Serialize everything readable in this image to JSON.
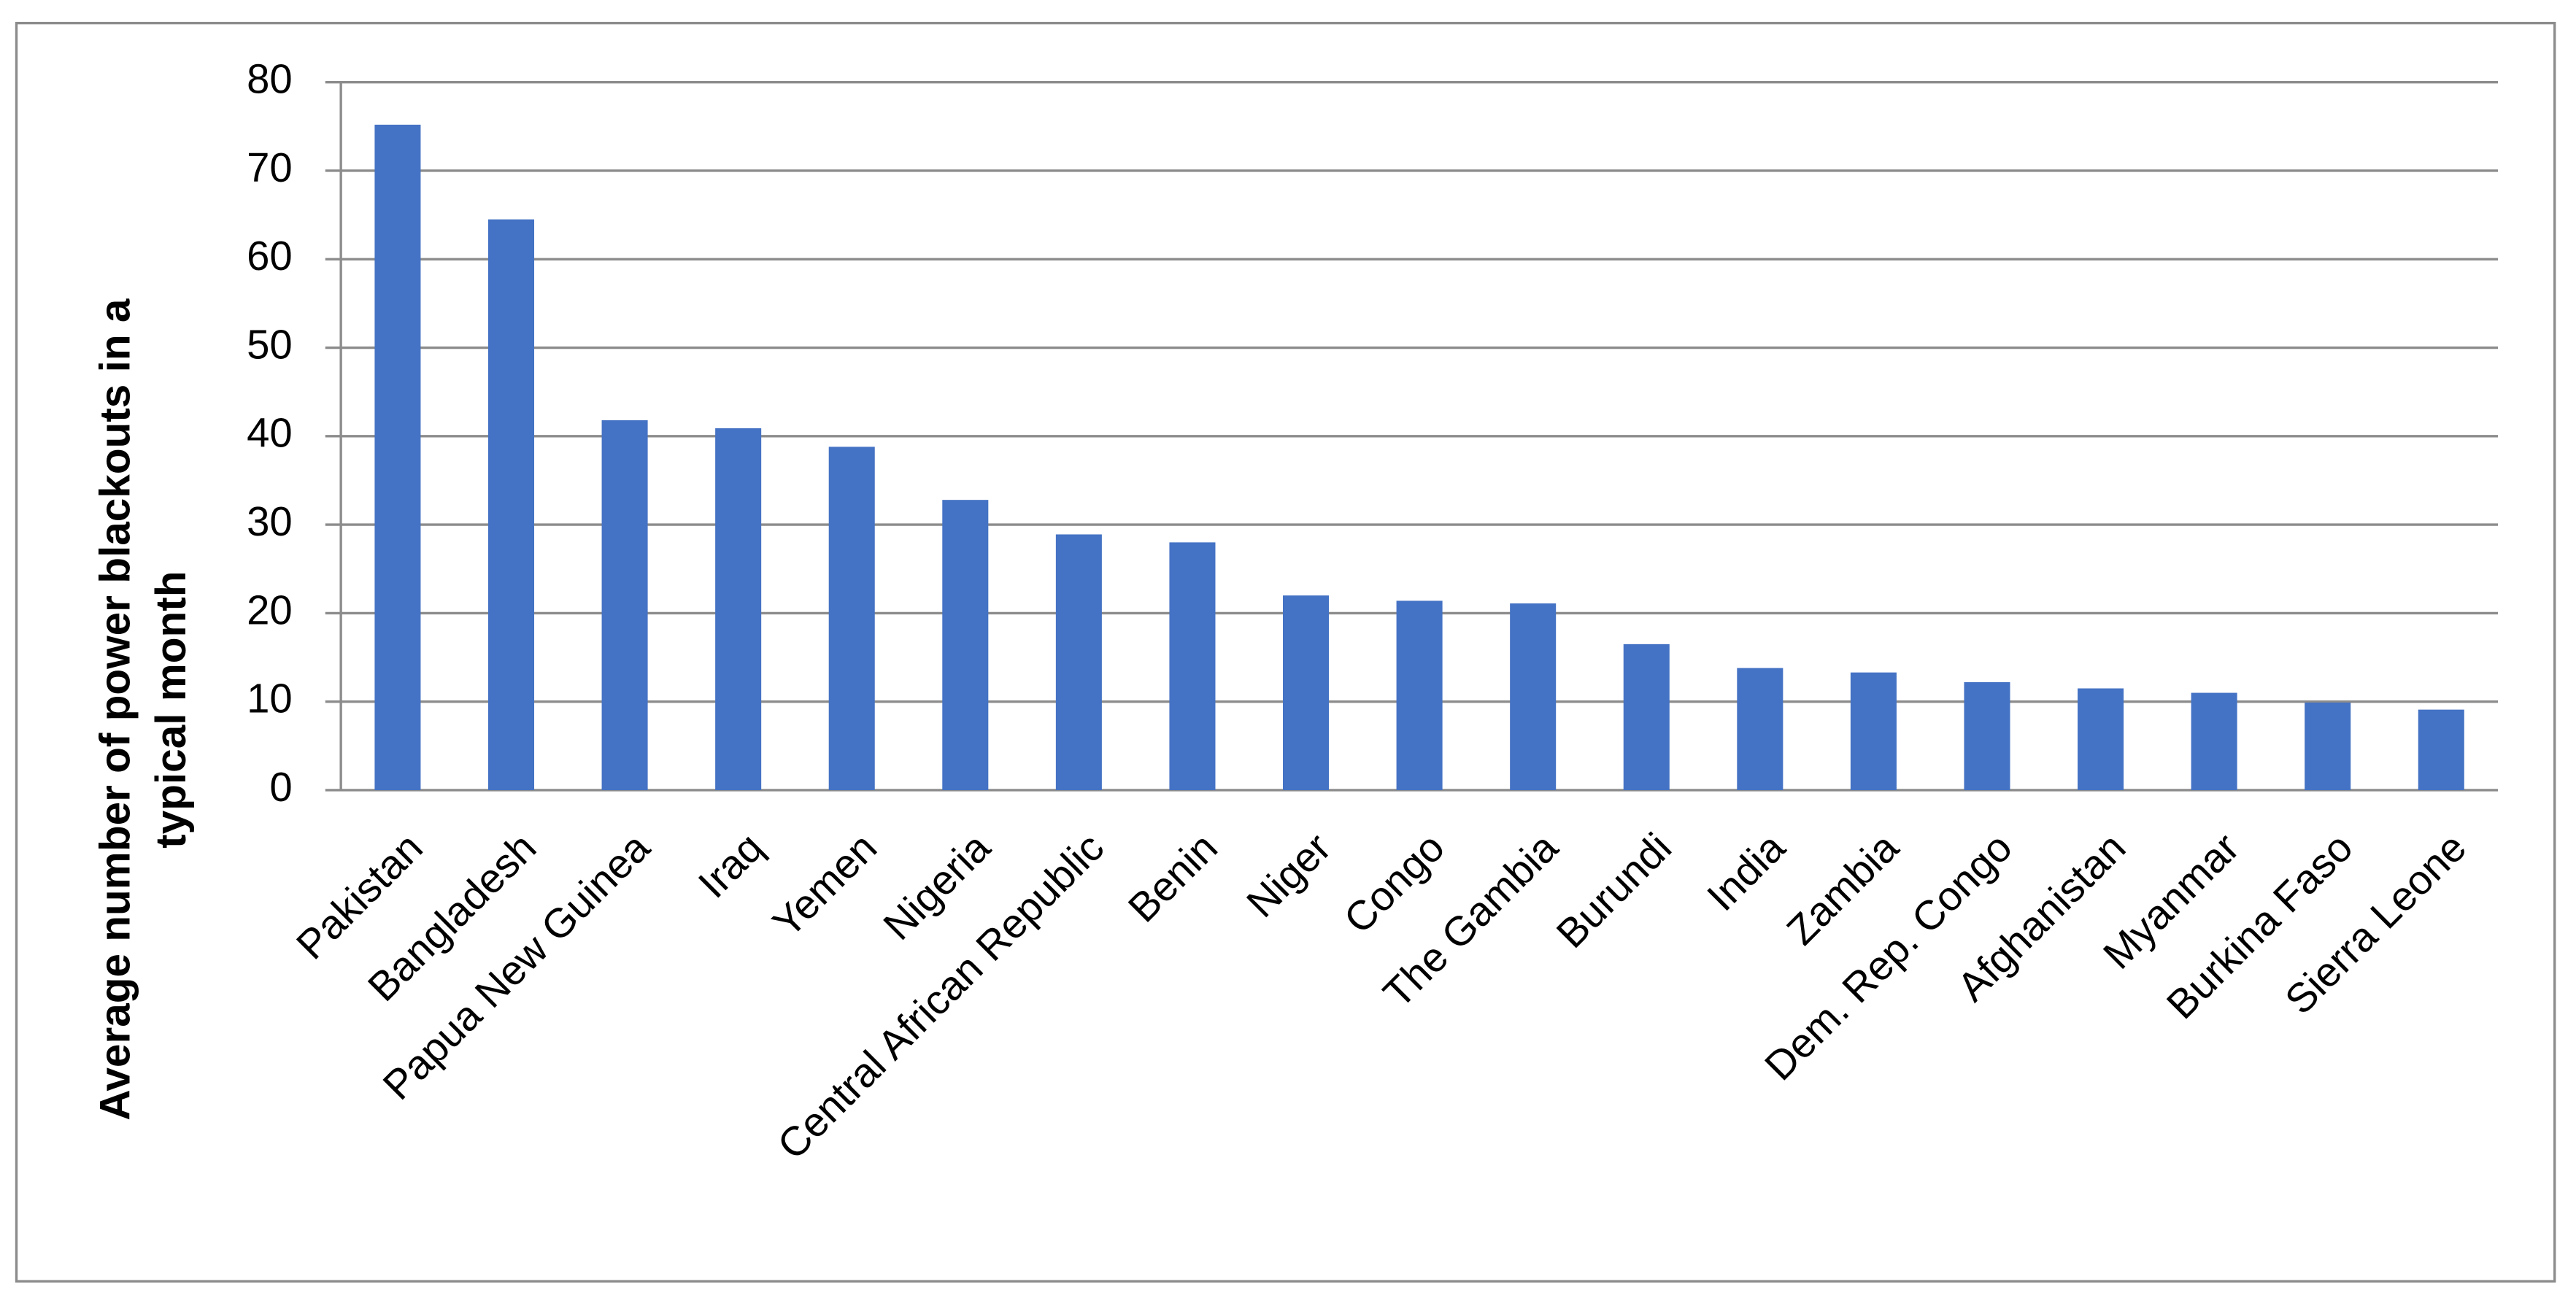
{
  "chart_data": {
    "type": "bar",
    "y_label": [
      "Average number of power blackouts in a",
      "typical month"
    ],
    "categories": [
      "Pakistan",
      "Bangladesh",
      "Papua New Guinea",
      "Iraq",
      "Yemen",
      "Nigeria",
      "Central African Republic",
      "Benin",
      "Niger",
      "Congo",
      "The Gambia",
      "Burundi",
      "India",
      "Zambia",
      "Dem. Rep. Congo",
      "Afghanistan",
      "Myanmar",
      "Burkina Faso",
      "Sierra Leone"
    ],
    "values": [
      75.2,
      64.5,
      41.8,
      40.9,
      38.8,
      32.8,
      28.9,
      28.0,
      22.0,
      21.4,
      21.1,
      16.5,
      13.8,
      13.3,
      12.2,
      11.5,
      11.0,
      9.9,
      9.1
    ],
    "color": "#4472c4",
    "ylim": [
      0,
      80
    ],
    "yticks": [
      0,
      10,
      20,
      30,
      40,
      50,
      60,
      70,
      80
    ],
    "grid": true
  }
}
